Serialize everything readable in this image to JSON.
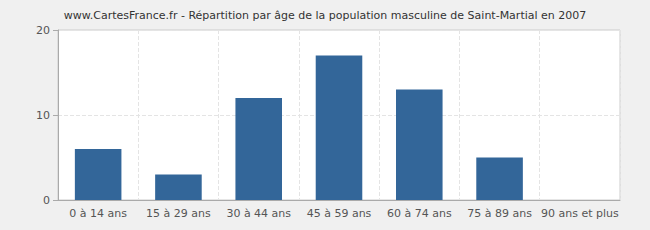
{
  "chart_data": {
    "type": "bar",
    "title": "www.CartesFrance.fr - Répartition par âge de la population masculine de Saint-Martial en 2007",
    "categories": [
      "0 à 14 ans",
      "15 à 29 ans",
      "30 à 44 ans",
      "45 à 59 ans",
      "60 à 74 ans",
      "75 à 89 ans",
      "90 ans et plus"
    ],
    "values": [
      6,
      3,
      12,
      17,
      13,
      5,
      0
    ],
    "color": "#336699",
    "ylim": [
      0,
      20
    ],
    "yticks": [
      0,
      10,
      20
    ],
    "grid": true
  }
}
